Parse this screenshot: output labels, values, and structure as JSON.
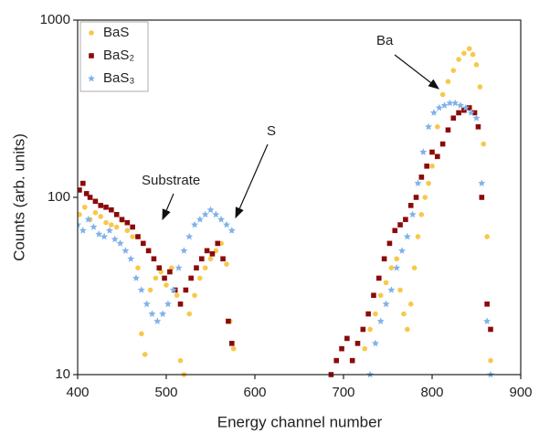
{
  "chart_data": {
    "type": "scatter",
    "x_label": "Energy channel number",
    "y_label": "Counts (arb. units)",
    "xlim": [
      400,
      900
    ],
    "xticks": [
      400,
      500,
      600,
      700,
      800,
      900
    ],
    "ylim": [
      10,
      1000
    ],
    "yticks": [
      10,
      100,
      1000
    ],
    "y_log": true,
    "legend": "upper left",
    "annotations": [
      "Ba",
      "S",
      "Substrate"
    ],
    "series": [
      {
        "name": "BaS",
        "color": "#f7c84a",
        "marker": "circle",
        "x": [
          402,
          408,
          414,
          420,
          426,
          432,
          438,
          444,
          450,
          456,
          462,
          468,
          472,
          476,
          482,
          488,
          494,
          500,
          506,
          512,
          516,
          520,
          526,
          532,
          538,
          544,
          550,
          556,
          562,
          568,
          572,
          576,
          724,
          730,
          736,
          742,
          748,
          754,
          760,
          764,
          768,
          772,
          776,
          780,
          784,
          788,
          792,
          796,
          800,
          806,
          812,
          818,
          824,
          830,
          836,
          842,
          846,
          850,
          854,
          858,
          862,
          866
        ],
        "values": [
          80,
          88,
          75,
          82,
          78,
          72,
          70,
          68,
          74,
          65,
          60,
          40,
          17,
          13,
          30,
          35,
          38,
          32,
          40,
          28,
          12,
          10,
          22,
          28,
          35,
          40,
          45,
          50,
          55,
          42,
          20,
          14,
          14,
          18,
          22,
          28,
          33,
          40,
          45,
          30,
          22,
          18,
          25,
          40,
          60,
          80,
          100,
          120,
          150,
          250,
          380,
          450,
          520,
          600,
          650,
          690,
          640,
          560,
          420,
          200,
          60,
          12
        ]
      },
      {
        "name": "BaS₂",
        "color": "#8b0a0a",
        "marker": "square",
        "x": [
          402,
          406,
          410,
          414,
          420,
          426,
          432,
          438,
          444,
          450,
          456,
          462,
          468,
          474,
          480,
          486,
          492,
          498,
          504,
          510,
          516,
          522,
          528,
          534,
          540,
          546,
          552,
          558,
          564,
          570,
          574,
          686,
          692,
          698,
          704,
          710,
          716,
          722,
          728,
          734,
          740,
          746,
          752,
          758,
          764,
          770,
          776,
          782,
          788,
          794,
          800,
          806,
          812,
          818,
          824,
          830,
          836,
          842,
          848,
          852,
          856,
          862,
          866
        ],
        "values": [
          110,
          120,
          105,
          100,
          95,
          90,
          88,
          85,
          80,
          75,
          72,
          68,
          60,
          55,
          50,
          45,
          40,
          35,
          38,
          30,
          25,
          30,
          35,
          40,
          45,
          50,
          48,
          55,
          45,
          20,
          15,
          10,
          12,
          14,
          16,
          12,
          15,
          18,
          22,
          28,
          35,
          45,
          55,
          65,
          70,
          75,
          90,
          100,
          130,
          150,
          180,
          170,
          200,
          240,
          280,
          300,
          310,
          320,
          300,
          250,
          100,
          25,
          18
        ]
      },
      {
        "name": "BaS₃",
        "color": "#7fb2e8",
        "marker": "star",
        "x": [
          400,
          406,
          412,
          418,
          424,
          430,
          436,
          442,
          448,
          454,
          460,
          466,
          472,
          478,
          484,
          490,
          496,
          502,
          508,
          514,
          520,
          526,
          532,
          538,
          544,
          550,
          556,
          562,
          568,
          574,
          730,
          736,
          742,
          748,
          754,
          760,
          766,
          772,
          778,
          784,
          790,
          796,
          802,
          808,
          814,
          820,
          826,
          832,
          838,
          844,
          850,
          856,
          862,
          866
        ],
        "values": [
          70,
          65,
          75,
          68,
          62,
          60,
          65,
          58,
          55,
          50,
          45,
          35,
          30,
          25,
          22,
          20,
          22,
          25,
          30,
          40,
          50,
          60,
          70,
          75,
          80,
          85,
          80,
          75,
          70,
          65,
          10,
          15,
          20,
          25,
          30,
          40,
          50,
          60,
          80,
          120,
          180,
          250,
          300,
          320,
          330,
          340,
          340,
          330,
          320,
          300,
          280,
          120,
          20,
          10
        ]
      }
    ]
  }
}
